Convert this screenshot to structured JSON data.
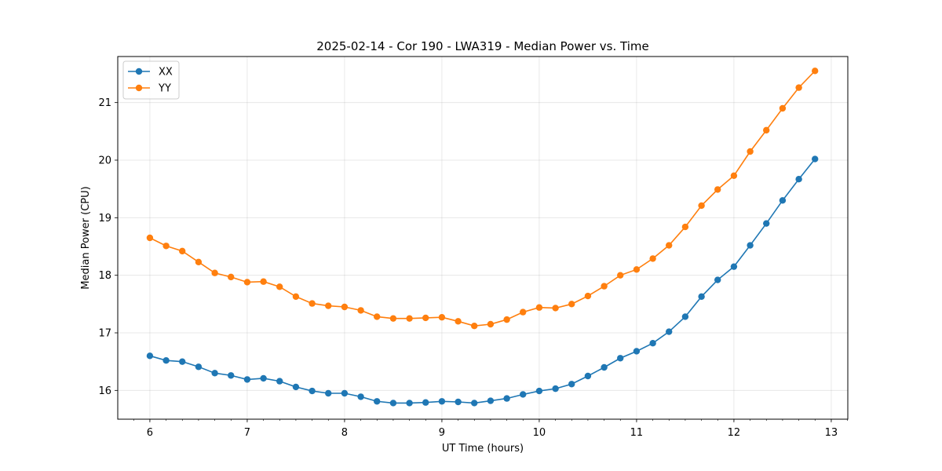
{
  "chart_data": {
    "type": "line",
    "title": "2025-02-14 - Cor 190 - LWA319 - Median Power vs. Time",
    "xlabel": "UT Time (hours)",
    "ylabel": "Median Power (CPU)",
    "xlim": [
      5.67,
      13.17
    ],
    "ylim": [
      15.5,
      21.8
    ],
    "xticks": [
      6,
      7,
      8,
      9,
      10,
      11,
      12,
      13
    ],
    "yticks": [
      16,
      17,
      18,
      19,
      20,
      21
    ],
    "grid": true,
    "legend": "top-left",
    "x": [
      6.0,
      6.167,
      6.333,
      6.5,
      6.667,
      6.833,
      7.0,
      7.167,
      7.333,
      7.5,
      7.667,
      7.833,
      8.0,
      8.167,
      8.333,
      8.5,
      8.667,
      8.833,
      9.0,
      9.167,
      9.333,
      9.5,
      9.667,
      9.833,
      10.0,
      10.167,
      10.333,
      10.5,
      10.667,
      10.833,
      11.0,
      11.167,
      11.333,
      11.5,
      11.667,
      11.833,
      12.0,
      12.167,
      12.333,
      12.5,
      12.667,
      12.833
    ],
    "series": [
      {
        "name": "XX",
        "color": "#1f77b4",
        "values": [
          16.6,
          16.52,
          16.5,
          16.41,
          16.3,
          16.26,
          16.19,
          16.21,
          16.16,
          16.06,
          15.99,
          15.95,
          15.95,
          15.89,
          15.81,
          15.78,
          15.78,
          15.79,
          15.81,
          15.8,
          15.78,
          15.82,
          15.86,
          15.93,
          15.99,
          16.03,
          16.11,
          16.25,
          16.4,
          16.56,
          16.68,
          16.82,
          17.02,
          17.28,
          17.63,
          17.92,
          18.15,
          18.52,
          18.9,
          19.3,
          19.67,
          20.02
        ]
      },
      {
        "name": "YY",
        "color": "#ff7f0e",
        "values": [
          18.65,
          18.51,
          18.42,
          18.23,
          18.04,
          17.97,
          17.88,
          17.89,
          17.8,
          17.63,
          17.51,
          17.47,
          17.45,
          17.39,
          17.28,
          17.25,
          17.25,
          17.26,
          17.27,
          17.2,
          17.12,
          17.15,
          17.23,
          17.36,
          17.44,
          17.43,
          17.5,
          17.64,
          17.81,
          18.0,
          18.1,
          18.29,
          18.52,
          18.84,
          19.21,
          19.49,
          19.73,
          20.15,
          20.52,
          20.9,
          21.26,
          21.55
        ]
      }
    ]
  }
}
